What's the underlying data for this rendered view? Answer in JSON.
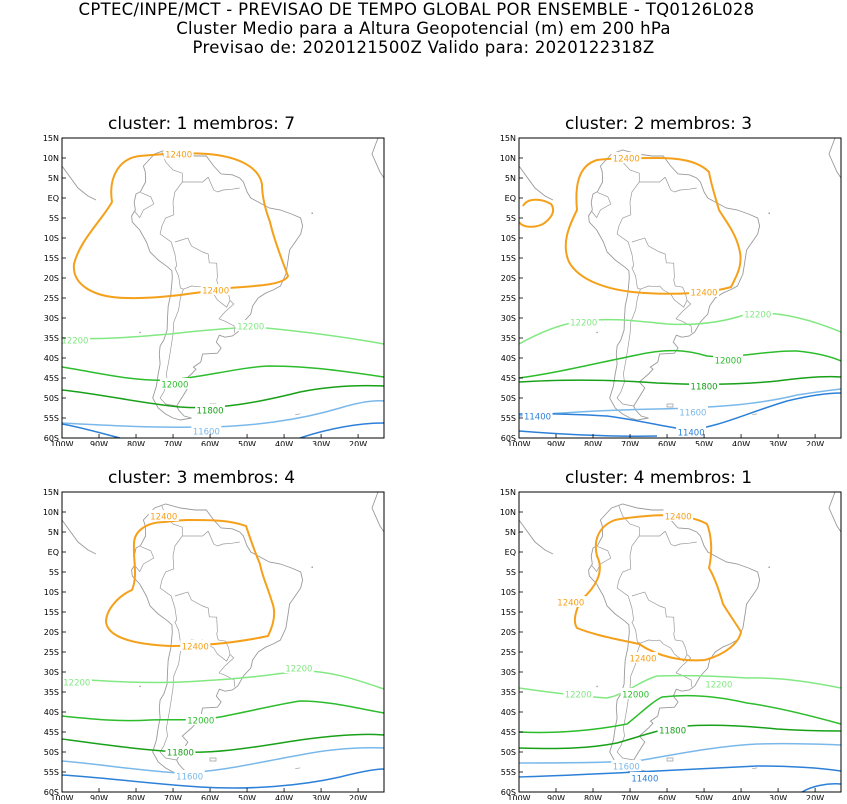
{
  "header": {
    "line1": "CPTEC/INPE/MCT - PREVISAO DE TEMPO GLOBAL POR ENSEMBLE - TQ0126L028",
    "line2": "Cluster Medio para a Altura Geopotencial (m) em 200 hPa",
    "line3": "Previsao de: 2020121500Z    Valido para: 2020122318Z"
  },
  "axes": {
    "lat_labels": [
      "15N",
      "10N",
      "5N",
      "EQ",
      "5S",
      "10S",
      "15S",
      "20S",
      "25S",
      "30S",
      "35S",
      "40S",
      "45S",
      "50S",
      "55S",
      "60S"
    ],
    "lon_labels": [
      "100W",
      "90W",
      "80W",
      "70W",
      "60W",
      "50W",
      "40W",
      "30W",
      "20W"
    ]
  },
  "colors": {
    "c12400": "#f5a01a",
    "c12200": "#82e882",
    "c12000": "#2cbc2c",
    "c11800": "#18a018",
    "c11600": "#7ab8ea",
    "c11400": "#2c80d8",
    "coast": "#9a9a9a"
  },
  "panels": [
    {
      "title": "cluster: 1   membros: 7",
      "labels": [
        {
          "text": "12400",
          "lon": -68.5,
          "lat": 11.0,
          "color": "c12400"
        },
        {
          "text": "12400",
          "lon": -58.5,
          "lat": -23.0,
          "color": "c12400"
        },
        {
          "text": "12200",
          "lon": -96.5,
          "lat": -35.5,
          "color": "c12200"
        },
        {
          "text": "12200",
          "lon": -49.0,
          "lat": -32.0,
          "color": "c12200"
        },
        {
          "text": "12000",
          "lon": -69.5,
          "lat": -46.5,
          "color": "c12000"
        },
        {
          "text": "11800",
          "lon": -60.0,
          "lat": -53.0,
          "color": "c11800"
        },
        {
          "text": "11600",
          "lon": -61.0,
          "lat": -58.3,
          "color": "c11600"
        }
      ]
    },
    {
      "title": "cluster: 2   membros: 3",
      "labels": [
        {
          "text": "12400",
          "lon": -71.0,
          "lat": 10.0,
          "color": "c12400"
        },
        {
          "text": "12400",
          "lon": -50.0,
          "lat": -23.5,
          "color": "c12400"
        },
        {
          "text": "12200",
          "lon": -82.5,
          "lat": -31.0,
          "color": "c12200"
        },
        {
          "text": "12200",
          "lon": -35.5,
          "lat": -29.0,
          "color": "c12200"
        },
        {
          "text": "12000",
          "lon": -43.5,
          "lat": -40.5,
          "color": "c12000"
        },
        {
          "text": "11800",
          "lon": -50.0,
          "lat": -47.0,
          "color": "c11800"
        },
        {
          "text": "11600",
          "lon": -53.0,
          "lat": -53.5,
          "color": "c11600"
        },
        {
          "text": "11400",
          "lon": -95.0,
          "lat": -54.5,
          "color": "c11400"
        },
        {
          "text": "11400",
          "lon": -53.5,
          "lat": -58.5,
          "color": "c11400"
        }
      ]
    },
    {
      "title": "cluster: 3   membros: 4",
      "labels": [
        {
          "text": "12400",
          "lon": -72.5,
          "lat": 9.0,
          "color": "c12400"
        },
        {
          "text": "12400",
          "lon": -64.0,
          "lat": -23.5,
          "color": "c12400"
        },
        {
          "text": "12200",
          "lon": -96.0,
          "lat": -32.5,
          "color": "c12200"
        },
        {
          "text": "12200",
          "lon": -36.0,
          "lat": -29.0,
          "color": "c12200"
        },
        {
          "text": "12000",
          "lon": -62.5,
          "lat": -42.0,
          "color": "c12000"
        },
        {
          "text": "11800",
          "lon": -68.0,
          "lat": -50.0,
          "color": "c11800"
        },
        {
          "text": "11600",
          "lon": -65.5,
          "lat": -56.0,
          "color": "c11600"
        }
      ]
    },
    {
      "title": "cluster: 4   membros: 1",
      "labels": [
        {
          "text": "12400",
          "lon": -57.0,
          "lat": 9.0,
          "color": "c12400"
        },
        {
          "text": "12400",
          "lon": -86.0,
          "lat": -12.5,
          "color": "c12400"
        },
        {
          "text": "12400",
          "lon": -66.5,
          "lat": -26.5,
          "color": "c12400"
        },
        {
          "text": "12200",
          "lon": -84.0,
          "lat": -35.5,
          "color": "c12200"
        },
        {
          "text": "12200",
          "lon": -46.0,
          "lat": -33.0,
          "color": "c12200"
        },
        {
          "text": "12000",
          "lon": -68.5,
          "lat": -35.5,
          "color": "c12000"
        },
        {
          "text": "11800",
          "lon": -58.5,
          "lat": -44.5,
          "color": "c11800"
        },
        {
          "text": "11600",
          "lon": -71.0,
          "lat": -53.5,
          "color": "c11600"
        },
        {
          "text": "11400",
          "lon": -66.0,
          "lat": -56.5,
          "color": "c11400"
        }
      ]
    }
  ]
}
